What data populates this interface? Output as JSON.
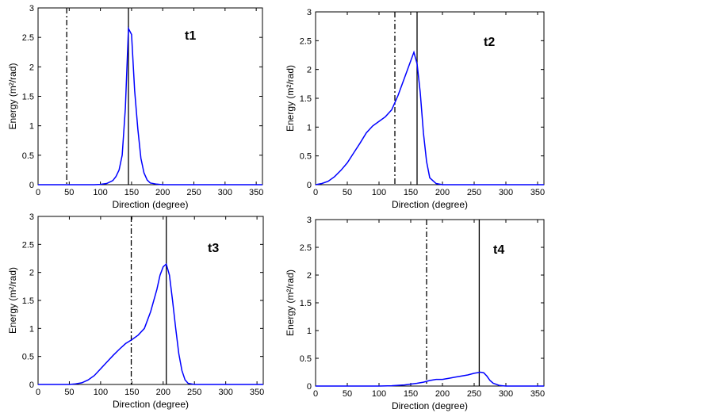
{
  "chart_data": [
    {
      "type": "line",
      "label": "t1",
      "xlabel": "Direction (degree)",
      "ylabel": "Energy (m²/rad)",
      "xlim": [
        0,
        360
      ],
      "ylim": [
        0,
        3
      ],
      "xticks": [
        0,
        50,
        100,
        150,
        200,
        250,
        300,
        350
      ],
      "yticks": [
        0,
        0.5,
        1,
        1.5,
        2,
        2.5,
        3
      ],
      "series": [
        {
          "color": "#0000ff",
          "x": [
            0,
            60,
            90,
            100,
            110,
            120,
            125,
            130,
            135,
            140,
            145,
            150,
            155,
            160,
            165,
            170,
            175,
            180,
            190,
            200,
            360
          ],
          "y": [
            0,
            0,
            0,
            0.005,
            0.02,
            0.07,
            0.14,
            0.25,
            0.5,
            1.3,
            2.65,
            2.55,
            1.6,
            0.95,
            0.45,
            0.2,
            0.08,
            0.03,
            0.01,
            0,
            0
          ]
        }
      ],
      "vlines": [
        {
          "x": 46,
          "style": "dashdot"
        },
        {
          "x": 145,
          "style": "solid"
        }
      ]
    },
    {
      "type": "line",
      "label": "t2",
      "xlabel": "Direction (degree)",
      "ylabel": "Energy (m²/rad)",
      "xlim": [
        0,
        360
      ],
      "ylim": [
        0,
        3
      ],
      "xticks": [
        0,
        50,
        100,
        150,
        200,
        250,
        300,
        350
      ],
      "yticks": [
        0,
        0.5,
        1,
        1.5,
        2,
        2.5,
        3
      ],
      "series": [
        {
          "color": "#0000ff",
          "x": [
            0,
            10,
            20,
            30,
            40,
            50,
            60,
            70,
            80,
            90,
            100,
            110,
            120,
            130,
            140,
            150,
            155,
            160,
            165,
            170,
            175,
            180,
            190,
            200,
            360
          ],
          "y": [
            0,
            0.02,
            0.06,
            0.14,
            0.25,
            0.38,
            0.55,
            0.72,
            0.9,
            1.02,
            1.1,
            1.18,
            1.3,
            1.55,
            1.85,
            2.15,
            2.3,
            2.1,
            1.6,
            0.9,
            0.4,
            0.12,
            0.02,
            0,
            0
          ]
        }
      ],
      "vlines": [
        {
          "x": 125,
          "style": "dashdot"
        },
        {
          "x": 160,
          "style": "solid"
        }
      ]
    },
    {
      "type": "line",
      "label": "t3",
      "xlabel": "Direction (degree)",
      "ylabel": "Energy (m²/rad)",
      "xlim": [
        0,
        360
      ],
      "ylim": [
        0,
        3
      ],
      "xticks": [
        0,
        50,
        100,
        150,
        200,
        250,
        300,
        350
      ],
      "yticks": [
        0,
        0.5,
        1,
        1.5,
        2,
        2.5,
        3
      ],
      "series": [
        {
          "color": "#0000ff",
          "x": [
            0,
            50,
            60,
            70,
            80,
            90,
            100,
            110,
            120,
            130,
            140,
            150,
            160,
            170,
            180,
            190,
            195,
            200,
            205,
            210,
            215,
            220,
            225,
            230,
            235,
            240,
            250,
            360
          ],
          "y": [
            0,
            0,
            0.01,
            0.03,
            0.08,
            0.16,
            0.28,
            0.4,
            0.52,
            0.63,
            0.73,
            0.8,
            0.88,
            1.0,
            1.3,
            1.7,
            1.95,
            2.1,
            2.15,
            1.95,
            1.5,
            1.0,
            0.55,
            0.25,
            0.08,
            0.02,
            0,
            0
          ]
        }
      ],
      "vlines": [
        {
          "x": 149,
          "style": "dashdot"
        },
        {
          "x": 205,
          "style": "solid"
        }
      ]
    },
    {
      "type": "line",
      "label": "t4",
      "xlabel": "Direction (degree)",
      "ylabel": "Energy (m²/rad)",
      "xlim": [
        0,
        360
      ],
      "ylim": [
        0,
        3
      ],
      "xticks": [
        0,
        50,
        100,
        150,
        200,
        250,
        300,
        350
      ],
      "yticks": [
        0,
        0.5,
        1,
        1.5,
        2,
        2.5,
        3
      ],
      "series": [
        {
          "color": "#0000ff",
          "x": [
            0,
            100,
            120,
            140,
            160,
            170,
            180,
            190,
            200,
            210,
            220,
            230,
            240,
            250,
            260,
            265,
            270,
            275,
            280,
            290,
            300,
            360
          ],
          "y": [
            0,
            0,
            0.005,
            0.02,
            0.05,
            0.07,
            0.1,
            0.12,
            0.12,
            0.14,
            0.16,
            0.18,
            0.2,
            0.23,
            0.25,
            0.24,
            0.18,
            0.1,
            0.05,
            0.01,
            0,
            0
          ]
        }
      ],
      "vlines": [
        {
          "x": 175,
          "style": "dashdot"
        },
        {
          "x": 258,
          "style": "solid"
        }
      ]
    }
  ]
}
